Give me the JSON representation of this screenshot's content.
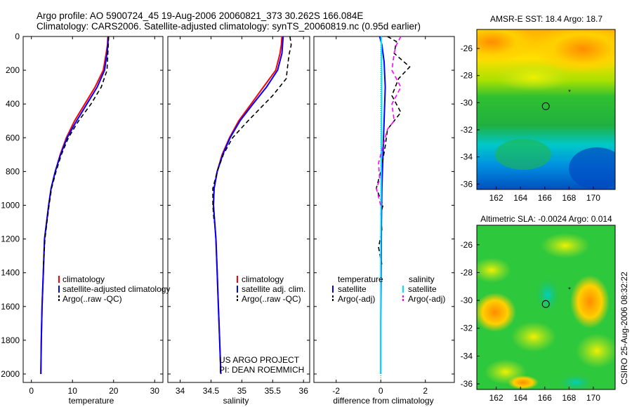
{
  "header": {
    "line1": "Argo profile: AO 5900724_45 19-Aug-2006 20060821_373 30.262S 166.084E",
    "line2": "Climatology: CARS2006. Satellite-adjusted climatology: synTS_20060819.nc (0.95d earlier)"
  },
  "credit": {
    "project": "US ARGO PROJECT",
    "pi": "PI: DEAN ROEMMICH",
    "csiro": "CSIRO  25-Aug-2006 08:32:22"
  },
  "colors": {
    "climatology": "#ff0000",
    "satellite": "#0000ff",
    "argo": "#000000",
    "diff_sat_salinity": "#00e5ff",
    "diff_argo_salinity": "#ff00ff"
  },
  "chart_data": [
    {
      "id": "temperature",
      "type": "line",
      "xlabel": "temperature",
      "xlim": [
        -2,
        32
      ],
      "xticks": [
        0,
        10,
        20,
        30
      ],
      "ylim": [
        2050,
        0
      ],
      "yticks": [
        0,
        200,
        400,
        600,
        800,
        1000,
        1200,
        1400,
        1600,
        1800,
        2000
      ],
      "legend": [
        "climatology",
        "satellite-adjusted climatology",
        "Argo(..raw -QC)"
      ],
      "series": [
        {
          "name": "climatology",
          "style": "solid",
          "color": "#ff0000",
          "x": [
            18.6,
            18.5,
            18.2,
            17.5,
            15.5,
            13,
            10.5,
            8.5,
            7,
            5.8,
            4.8,
            4.2,
            3.7,
            3.2,
            2.9,
            2.6,
            2.4,
            2.3
          ],
          "y": [
            0,
            50,
            100,
            200,
            300,
            400,
            500,
            600,
            700,
            800,
            900,
            1000,
            1100,
            1200,
            1400,
            1600,
            1800,
            2000
          ]
        },
        {
          "name": "satellite-adjusted climatology",
          "style": "solid",
          "color": "#0000ff",
          "x": [
            18.7,
            18.6,
            18.4,
            17.8,
            16,
            13.5,
            11,
            8.7,
            7.1,
            5.8,
            4.8,
            4.2,
            3.7,
            3.2,
            2.9,
            2.6,
            2.4,
            2.3
          ],
          "y": [
            0,
            50,
            100,
            200,
            300,
            400,
            500,
            600,
            700,
            800,
            900,
            1000,
            1100,
            1200,
            1400,
            1600,
            1800,
            2000
          ]
        },
        {
          "name": "Argo(..raw -QC)",
          "style": "dashed",
          "color": "#000000",
          "x": [
            18.8,
            18.7,
            18.6,
            18.4,
            17,
            14.5,
            11.5,
            9,
            7.3,
            6,
            4.9,
            4.3,
            3.8,
            3.3,
            2.95
          ],
          "y": [
            0,
            50,
            100,
            200,
            300,
            400,
            500,
            600,
            700,
            800,
            900,
            1000,
            1100,
            1200,
            1350
          ]
        }
      ]
    },
    {
      "id": "salinity",
      "type": "line",
      "xlabel": "salinity",
      "xlim": [
        33.8,
        36.1
      ],
      "xticks": [
        34,
        34.5,
        35,
        35.5,
        36
      ],
      "ylim": [
        2050,
        0
      ],
      "legend": [
        "climatology",
        "satellite adj. clim.",
        "Argo(..raw -QC)"
      ],
      "series": [
        {
          "name": "climatology",
          "style": "solid",
          "color": "#ff0000",
          "x": [
            35.65,
            35.64,
            35.62,
            35.55,
            35.35,
            35.15,
            34.95,
            34.8,
            34.68,
            34.6,
            34.55,
            34.54,
            34.56,
            34.58,
            34.6,
            34.62,
            34.64,
            34.66
          ],
          "y": [
            0,
            50,
            100,
            200,
            300,
            400,
            500,
            600,
            700,
            800,
            900,
            1000,
            1100,
            1200,
            1400,
            1600,
            1800,
            2000
          ]
        },
        {
          "name": "satellite adj. clim.",
          "style": "solid",
          "color": "#0000ff",
          "x": [
            35.67,
            35.66,
            35.65,
            35.58,
            35.4,
            35.18,
            34.97,
            34.81,
            34.69,
            34.6,
            34.55,
            34.54,
            34.56,
            34.58,
            34.6,
            34.62,
            34.64,
            34.66
          ],
          "y": [
            0,
            50,
            100,
            200,
            300,
            400,
            500,
            600,
            700,
            800,
            900,
            1000,
            1100,
            1200,
            1400,
            1600,
            1800,
            2000
          ]
        },
        {
          "name": "Argo(..raw -QC)",
          "style": "dashed",
          "color": "#000000",
          "x": [
            35.78,
            35.8,
            35.77,
            35.75,
            35.72,
            35.5,
            35.1,
            34.85,
            34.7,
            34.6,
            34.53,
            34.53,
            34.55
          ],
          "y": [
            0,
            50,
            100,
            150,
            250,
            350,
            500,
            600,
            700,
            800,
            900,
            1000,
            1100
          ]
        }
      ]
    },
    {
      "id": "difference",
      "type": "line",
      "xlabel": "difference from climatology",
      "xlim": [
        -3,
        3.3
      ],
      "xticks": [
        -2,
        0,
        2
      ],
      "ylim": [
        2050,
        0
      ],
      "legend_temperature": {
        "title": "temperature",
        "items": [
          "satellite",
          "Argo(-adj)"
        ]
      },
      "legend_salinity": {
        "title": "salinity",
        "items": [
          "satellite",
          "Argo(-adj)"
        ]
      },
      "series": [
        {
          "name": "temperature satellite",
          "style": "solid",
          "color": "#0000ff",
          "x": [
            -0.05,
            0.05,
            0.15,
            0.2,
            0.15,
            0.1,
            0.05,
            0.03,
            0.02,
            0.01,
            0.0,
            0.0,
            0.0
          ],
          "y": [
            0,
            50,
            150,
            300,
            500,
            700,
            900,
            1100,
            1300,
            1500,
            1700,
            1900,
            2000
          ]
        },
        {
          "name": "temperature Argo(-adj)",
          "style": "dashed",
          "color": "#000000",
          "x": [
            0.3,
            0.7,
            0.6,
            1.3,
            0.8,
            0.5,
            0.9,
            0.3,
            0.2,
            0.0,
            -0.2,
            0.1,
            0.0,
            0.05,
            -0.1,
            0.05
          ],
          "y": [
            0,
            30,
            100,
            180,
            250,
            350,
            450,
            550,
            650,
            800,
            900,
            1000,
            1050,
            1150,
            1250,
            1350
          ]
        },
        {
          "name": "salinity satellite",
          "style": "solid",
          "color": "#00e5ff",
          "x": [
            0.02,
            0.03,
            0.04,
            0.04,
            0.03,
            0.02,
            0.01,
            0.0,
            0.0,
            0.0
          ],
          "y": [
            0,
            100,
            200,
            400,
            600,
            800,
            1000,
            1300,
            1600,
            2000
          ]
        },
        {
          "name": "salinity Argo(-adj)",
          "style": "dashed",
          "color": "#ff00ff",
          "x": [
            0.9,
            0.7,
            0.6,
            0.5,
            0.9,
            0.7,
            0.5,
            0.6,
            0.3,
            0.1,
            -0.1,
            -0.05,
            -0.2,
            0.0
          ],
          "y": [
            0,
            50,
            100,
            200,
            300,
            350,
            400,
            500,
            550,
            650,
            750,
            850,
            900,
            1000
          ]
        }
      ]
    },
    {
      "id": "sst",
      "type": "heatmap",
      "title": "AMSR-E SST: 18.4  Argo: 18.7",
      "xlim": [
        160.4,
        171.8
      ],
      "ylim": [
        -36.4,
        -24.6
      ],
      "xticks": [
        162,
        164,
        166,
        168,
        170
      ],
      "yticks": [
        -26,
        -28,
        -30,
        -32,
        -34,
        -36
      ],
      "float_position": [
        166.084,
        -30.262
      ]
    },
    {
      "id": "sla",
      "type": "heatmap",
      "title": "Altimetric SLA: -0.0024  Argo: 0.014",
      "xlim": [
        160.4,
        171.8
      ],
      "ylim": [
        -36.4,
        -24.6
      ],
      "xticks": [
        162,
        164,
        166,
        168,
        170
      ],
      "yticks": [
        -26,
        -28,
        -30,
        -32,
        -34,
        -36
      ],
      "float_position": [
        166.084,
        -30.262
      ]
    }
  ]
}
